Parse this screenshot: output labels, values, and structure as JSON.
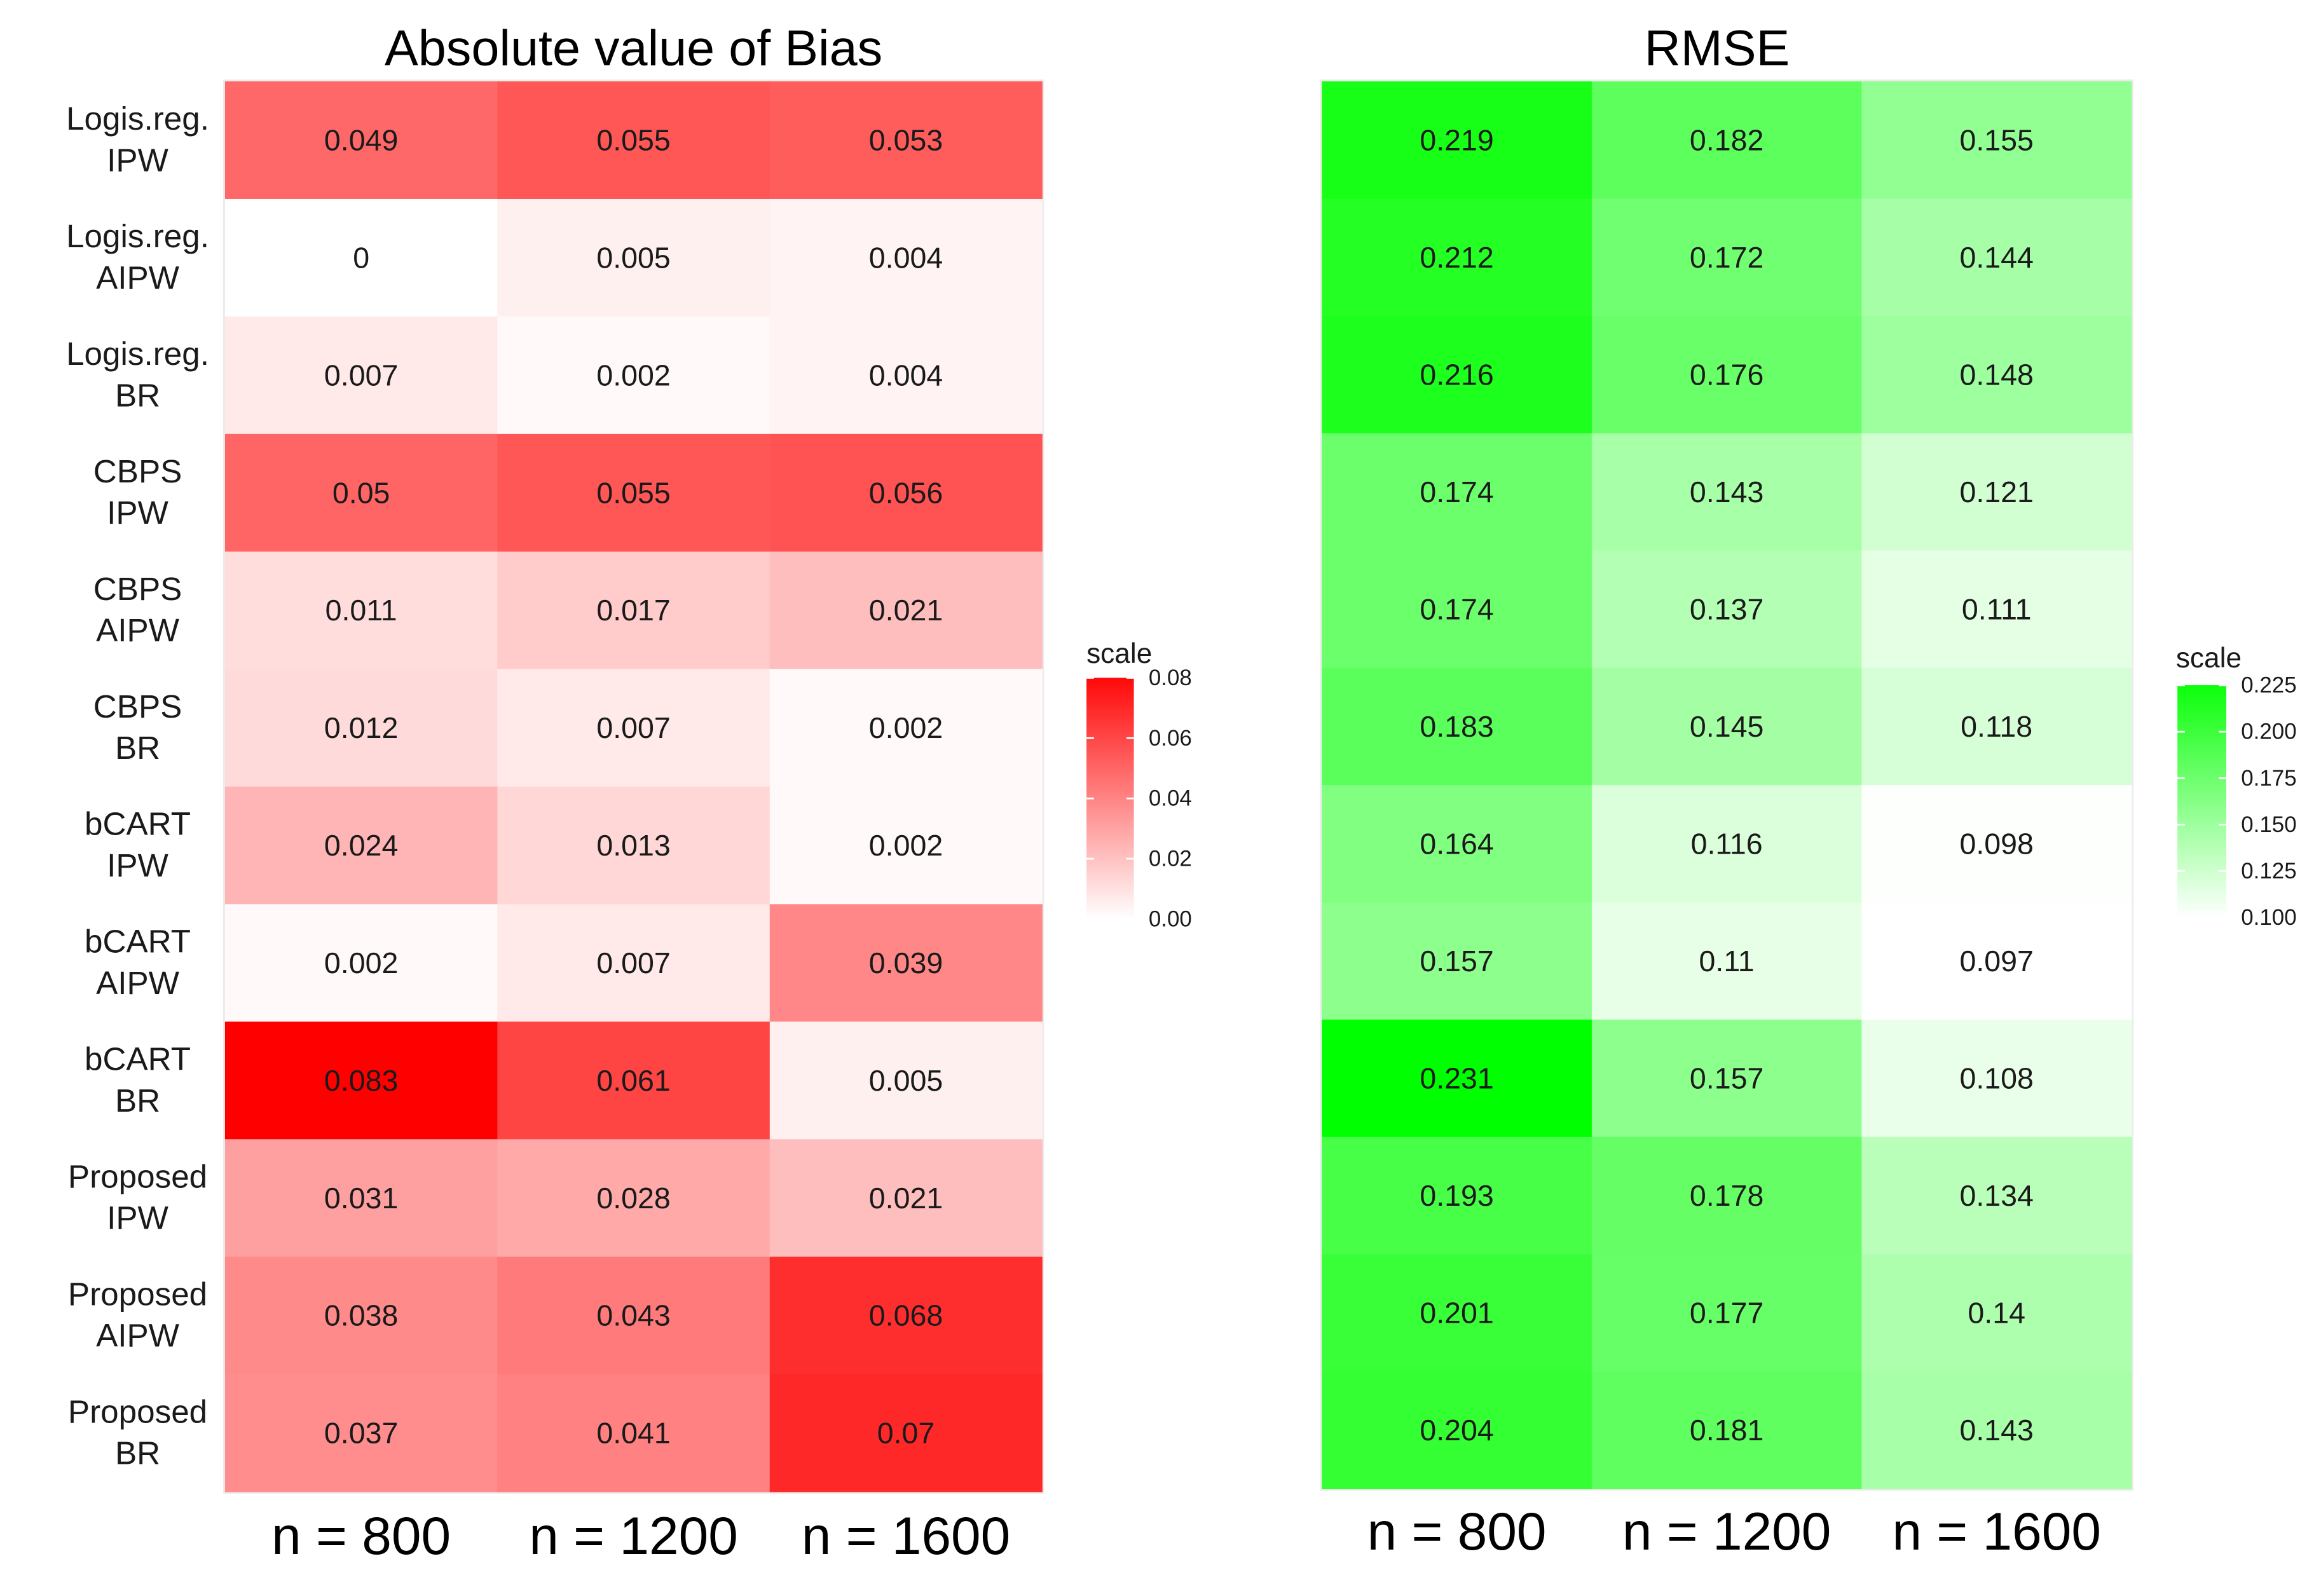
{
  "chart_data": [
    {
      "type": "heatmap",
      "title": "Absolute value of Bias",
      "x_categories": [
        "n = 800",
        "n = 1200",
        "n = 1600"
      ],
      "y_categories": [
        "Logis.reg.\nIPW",
        "Logis.reg.\nAIPW",
        "Logis.reg.\nBR",
        "CBPS\nIPW",
        "CBPS\nAIPW",
        "CBPS\nBR",
        "bCART\nIPW",
        "bCART\nAIPW",
        "bCART\nBR",
        "Proposed\nIPW",
        "Proposed\nAIPW",
        "Proposed\nBR"
      ],
      "cell_labels": [
        [
          "0.049",
          "0.055",
          "0.053"
        ],
        [
          "0",
          "0.005",
          "0.004"
        ],
        [
          "0.007",
          "0.002",
          "0.004"
        ],
        [
          "0.05",
          "0.055",
          "0.056"
        ],
        [
          "0.011",
          "0.017",
          "0.021"
        ],
        [
          "0.012",
          "0.007",
          "0.002"
        ],
        [
          "0.024",
          "0.013",
          "0.002"
        ],
        [
          "0.002",
          "0.007",
          "0.039"
        ],
        [
          "0.083",
          "0.061",
          "0.005"
        ],
        [
          "0.031",
          "0.028",
          "0.021"
        ],
        [
          "0.038",
          "0.043",
          "0.068"
        ],
        [
          "0.037",
          "0.041",
          "0.07"
        ]
      ],
      "values": [
        [
          0.049,
          0.055,
          0.053
        ],
        [
          0,
          0.005,
          0.004
        ],
        [
          0.007,
          0.002,
          0.004
        ],
        [
          0.05,
          0.055,
          0.056
        ],
        [
          0.011,
          0.017,
          0.021
        ],
        [
          0.012,
          0.007,
          0.002
        ],
        [
          0.024,
          0.013,
          0.002
        ],
        [
          0.002,
          0.007,
          0.039
        ],
        [
          0.083,
          0.061,
          0.005
        ],
        [
          0.031,
          0.028,
          0.021
        ],
        [
          0.038,
          0.043,
          0.068
        ],
        [
          0.037,
          0.041,
          0.07
        ]
      ],
      "legend": {
        "title": "scale",
        "ticks": [
          "0.08",
          "0.06",
          "0.04",
          "0.02",
          "0.00"
        ],
        "tick_values": [
          0.08,
          0.06,
          0.04,
          0.02,
          0.0
        ],
        "min": 0.0,
        "max": 0.083,
        "low_color": "#ffffff",
        "high_color": "#ff0000"
      }
    },
    {
      "type": "heatmap",
      "title": "RMSE",
      "x_categories": [
        "n = 800",
        "n = 1200",
        "n = 1600"
      ],
      "cell_labels": [
        [
          "0.219",
          "0.182",
          "0.155"
        ],
        [
          "0.212",
          "0.172",
          "0.144"
        ],
        [
          "0.216",
          "0.176",
          "0.148"
        ],
        [
          "0.174",
          "0.143",
          "0.121"
        ],
        [
          "0.174",
          "0.137",
          "0.111"
        ],
        [
          "0.183",
          "0.145",
          "0.118"
        ],
        [
          "0.164",
          "0.116",
          "0.098"
        ],
        [
          "0.157",
          "0.11",
          "0.097"
        ],
        [
          "0.231",
          "0.157",
          "0.108"
        ],
        [
          "0.193",
          "0.178",
          "0.134"
        ],
        [
          "0.201",
          "0.177",
          "0.14"
        ],
        [
          "0.204",
          "0.181",
          "0.143"
        ]
      ],
      "values": [
        [
          0.219,
          0.182,
          0.155
        ],
        [
          0.212,
          0.172,
          0.144
        ],
        [
          0.216,
          0.176,
          0.148
        ],
        [
          0.174,
          0.143,
          0.121
        ],
        [
          0.174,
          0.137,
          0.111
        ],
        [
          0.183,
          0.145,
          0.118
        ],
        [
          0.164,
          0.116,
          0.098
        ],
        [
          0.157,
          0.11,
          0.097
        ],
        [
          0.231,
          0.157,
          0.108
        ],
        [
          0.193,
          0.178,
          0.134
        ],
        [
          0.201,
          0.177,
          0.14
        ],
        [
          0.204,
          0.181,
          0.143
        ]
      ],
      "legend": {
        "title": "scale",
        "ticks": [
          "0.225",
          "0.200",
          "0.175",
          "0.150",
          "0.125",
          "0.100"
        ],
        "tick_values": [
          0.225,
          0.2,
          0.175,
          0.15,
          0.125,
          0.1
        ],
        "min": 0.097,
        "max": 0.231,
        "low_color": "#ffffff",
        "high_color": "#00ff00"
      }
    }
  ]
}
